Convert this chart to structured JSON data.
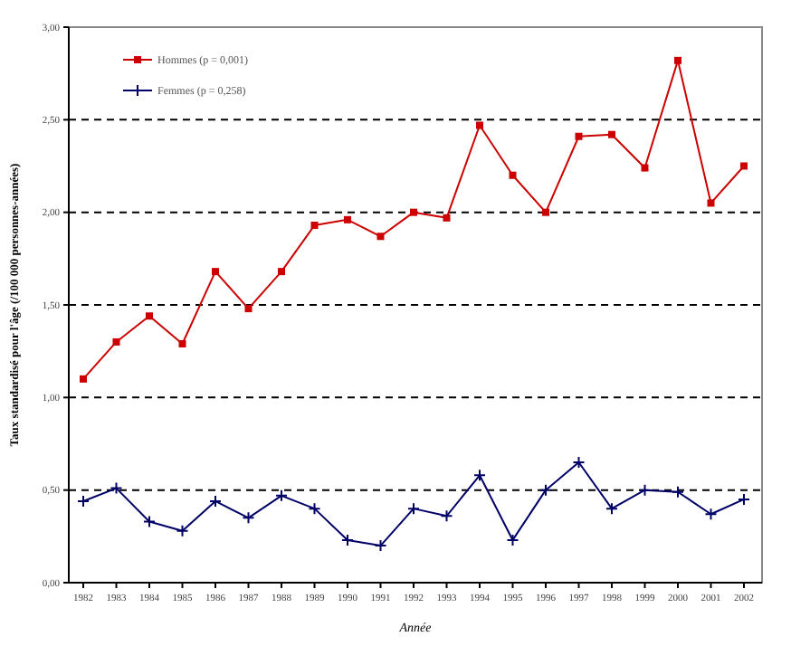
{
  "chart_data": {
    "type": "line",
    "xlabel": "Année",
    "ylabel": "Taux standardisé pour l'âge (/100 000 personnes-années)",
    "categories": [
      "1982",
      "1983",
      "1984",
      "1985",
      "1986",
      "1987",
      "1988",
      "1989",
      "1990",
      "1991",
      "1992",
      "1993",
      "1994",
      "1995",
      "1996",
      "1997",
      "1998",
      "1999",
      "2000",
      "2001",
      "2002"
    ],
    "series": [
      {
        "name": "Hommes (p = 0,001)",
        "color": "#cc0000",
        "marker": "square",
        "values": [
          1.1,
          1.3,
          1.44,
          1.29,
          1.68,
          1.48,
          1.68,
          1.93,
          1.96,
          1.87,
          2.0,
          1.97,
          2.47,
          2.2,
          2.0,
          2.41,
          2.42,
          2.24,
          2.82,
          2.05,
          2.25
        ]
      },
      {
        "name": "Femmes (p = 0,258)",
        "color": "#000066",
        "marker": "cross",
        "values": [
          0.44,
          0.51,
          0.33,
          0.28,
          0.44,
          0.35,
          0.47,
          0.4,
          0.23,
          0.2,
          0.4,
          0.36,
          0.58,
          0.23,
          0.5,
          0.65,
          0.4,
          0.5,
          0.49,
          0.37,
          0.45
        ]
      }
    ],
    "ylim": [
      0,
      3
    ],
    "yticks": [
      {
        "value": 0,
        "label": "0,00"
      },
      {
        "value": 0.5,
        "label": "0,50"
      },
      {
        "value": 1,
        "label": "1,00"
      },
      {
        "value": 1.5,
        "label": "1,50"
      },
      {
        "value": 2,
        "label": "2,00"
      },
      {
        "value": 2.5,
        "label": "2,50"
      },
      {
        "value": 3,
        "label": "3,00"
      }
    ],
    "grid": "y",
    "legend": "top left",
    "line_style": "solid"
  }
}
